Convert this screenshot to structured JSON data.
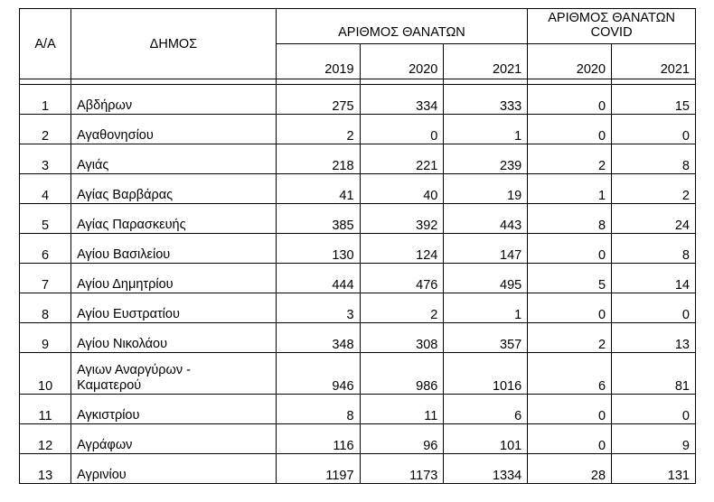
{
  "table": {
    "headers": {
      "aa": "Α/Α",
      "dimos": "ΔΗΜΟΣ",
      "deaths_group": "ΑΡΙΘΜΟΣ ΘΑΝΑΤΩΝ",
      "covid_group_line1": "ΑΡΙΘΜΟΣ ΘΑΝΑΤΩΝ",
      "covid_group_line2": "COVID",
      "years": [
        "2019",
        "2020",
        "2021",
        "2020",
        "2021"
      ]
    },
    "rows": [
      {
        "aa": "1",
        "name": "Αβδήρων",
        "d2019": "275",
        "d2020": "334",
        "d2021": "333",
        "c2020": "0",
        "c2021": "15"
      },
      {
        "aa": "2",
        "name": "Αγαθονησίου",
        "d2019": "2",
        "d2020": "0",
        "d2021": "1",
        "c2020": "0",
        "c2021": "0"
      },
      {
        "aa": "3",
        "name": "Αγιάς",
        "d2019": "218",
        "d2020": "221",
        "d2021": "239",
        "c2020": "2",
        "c2021": "8"
      },
      {
        "aa": "4",
        "name": "Αγίας Βαρβάρας",
        "d2019": "41",
        "d2020": "40",
        "d2021": "19",
        "c2020": "1",
        "c2021": "2"
      },
      {
        "aa": "5",
        "name": "Αγίας Παρασκευής",
        "d2019": "385",
        "d2020": "392",
        "d2021": "443",
        "c2020": "8",
        "c2021": "24"
      },
      {
        "aa": "6",
        "name": "Αγίου Βασιλείου",
        "d2019": "130",
        "d2020": "124",
        "d2021": "147",
        "c2020": "0",
        "c2021": "8"
      },
      {
        "aa": "7",
        "name": "Αγίου Δημητρίου",
        "d2019": "444",
        "d2020": "476",
        "d2021": "495",
        "c2020": "5",
        "c2021": "14"
      },
      {
        "aa": "8",
        "name": "Αγίου Ευστρατίου",
        "d2019": "3",
        "d2020": "2",
        "d2021": "1",
        "c2020": "0",
        "c2021": "0"
      },
      {
        "aa": "9",
        "name": "Αγίου Νικολάου",
        "d2019": "348",
        "d2020": "308",
        "d2021": "357",
        "c2020": "2",
        "c2021": "13"
      },
      {
        "aa": "10",
        "name_line1": "Αγιων Αναργύρων -",
        "name_line2": "Καματερού",
        "d2019": "946",
        "d2020": "986",
        "d2021": "1016",
        "c2020": "6",
        "c2021": "81"
      },
      {
        "aa": "11",
        "name": "Αγκιστρίου",
        "d2019": "8",
        "d2020": "11",
        "d2021": "6",
        "c2020": "0",
        "c2021": "0"
      },
      {
        "aa": "12",
        "name": "Αγράφων",
        "d2019": "116",
        "d2020": "96",
        "d2021": "101",
        "c2020": "0",
        "c2021": "9"
      },
      {
        "aa": "13",
        "name": "Αγρινίου",
        "d2019": "1197",
        "d2020": "1173",
        "d2021": "1334",
        "c2020": "28",
        "c2021": "131"
      }
    ]
  }
}
